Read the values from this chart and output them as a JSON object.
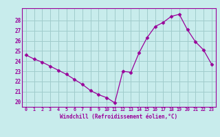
{
  "x": [
    0,
    1,
    2,
    3,
    4,
    5,
    6,
    7,
    8,
    9,
    10,
    11,
    12,
    13,
    14,
    15,
    16,
    17,
    18,
    19,
    20,
    21,
    22,
    23
  ],
  "y": [
    24.6,
    24.2,
    23.9,
    23.5,
    23.1,
    22.7,
    22.2,
    21.7,
    21.1,
    20.7,
    20.4,
    19.9,
    23.0,
    22.9,
    24.8,
    26.3,
    27.4,
    27.8,
    28.4,
    28.6,
    27.1,
    25.9,
    25.1,
    23.7
  ],
  "line_color": "#990099",
  "marker": "D",
  "marker_size": 2.5,
  "bg_color": "#c8ecec",
  "grid_color": "#a0cccc",
  "xlabel": "Windchill (Refroidissement éolien,°C)",
  "xlabel_color": "#990099",
  "yticks": [
    20,
    21,
    22,
    23,
    24,
    25,
    26,
    27,
    28
  ],
  "ylim": [
    19.5,
    29.2
  ],
  "xlim": [
    -0.5,
    23.5
  ],
  "xtick_labels": [
    "0",
    "1",
    "2",
    "3",
    "4",
    "5",
    "6",
    "7",
    "8",
    "9",
    "10",
    "11",
    "12",
    "13",
    "14",
    "15",
    "16",
    "17",
    "18",
    "19",
    "20",
    "21",
    "22",
    "23"
  ]
}
